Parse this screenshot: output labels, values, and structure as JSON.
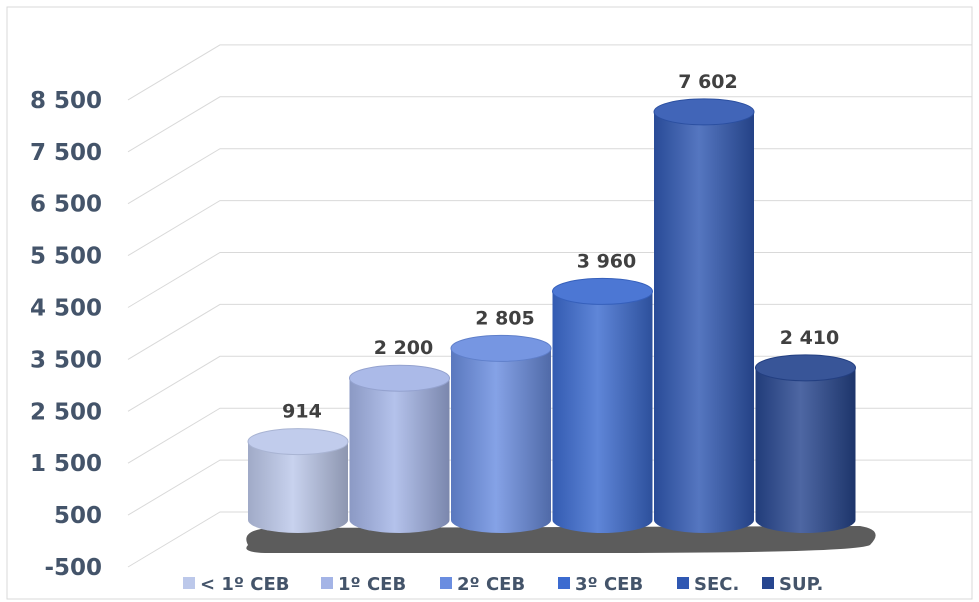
{
  "chart_data": {
    "type": "bar",
    "style": "3d-cylinder",
    "categories": [
      "< 1º CEB",
      "1º CEB",
      "2º CEB",
      "3º CEB",
      "SEC.",
      "SUP."
    ],
    "values": [
      914,
      2200,
      2805,
      3960,
      7602,
      2410
    ],
    "data_labels": [
      "914",
      "2 200",
      "2 805",
      "3 960",
      "7 602",
      "2 410"
    ],
    "y_ticks": [
      -500,
      500,
      1500,
      2500,
      3500,
      4500,
      5500,
      6500,
      7500,
      8500
    ],
    "y_tick_labels": [
      "-500",
      "500",
      "1 500",
      "2 500",
      "3 500",
      "4 500",
      "5 500",
      "6 500",
      "7 500",
      "8 500"
    ],
    "ylim": [
      -500,
      9500
    ],
    "grid": true,
    "legend_position": "bottom",
    "colors": [
      "#bcc8ea",
      "#a4b4e6",
      "#6a8de0",
      "#3c6bd0",
      "#3058b2",
      "#27468f"
    ]
  }
}
